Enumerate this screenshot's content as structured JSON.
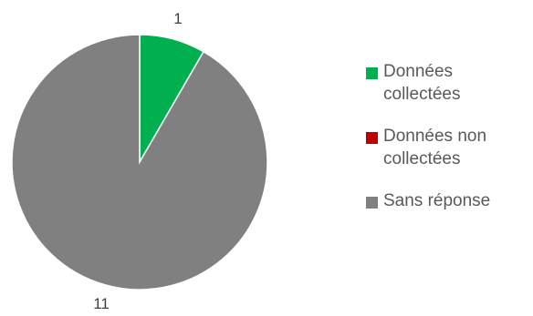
{
  "chart_data": {
    "type": "pie",
    "categories": [
      "Données collectées",
      "Données non collectées",
      "Sans réponse"
    ],
    "values": [
      1,
      0,
      11
    ],
    "data_labels": [
      "1",
      "",
      "11"
    ],
    "colors": [
      "#00B050",
      "#C00000",
      "#808080"
    ],
    "legend_position": "right",
    "title": ""
  },
  "legend": {
    "items": [
      {
        "line1": "Données",
        "line2": "collectées",
        "color": "#00B050"
      },
      {
        "line1": "Données non",
        "line2": "collectées",
        "color": "#C00000"
      },
      {
        "line1": "Sans réponse",
        "line2": "",
        "color": "#808080"
      }
    ]
  }
}
